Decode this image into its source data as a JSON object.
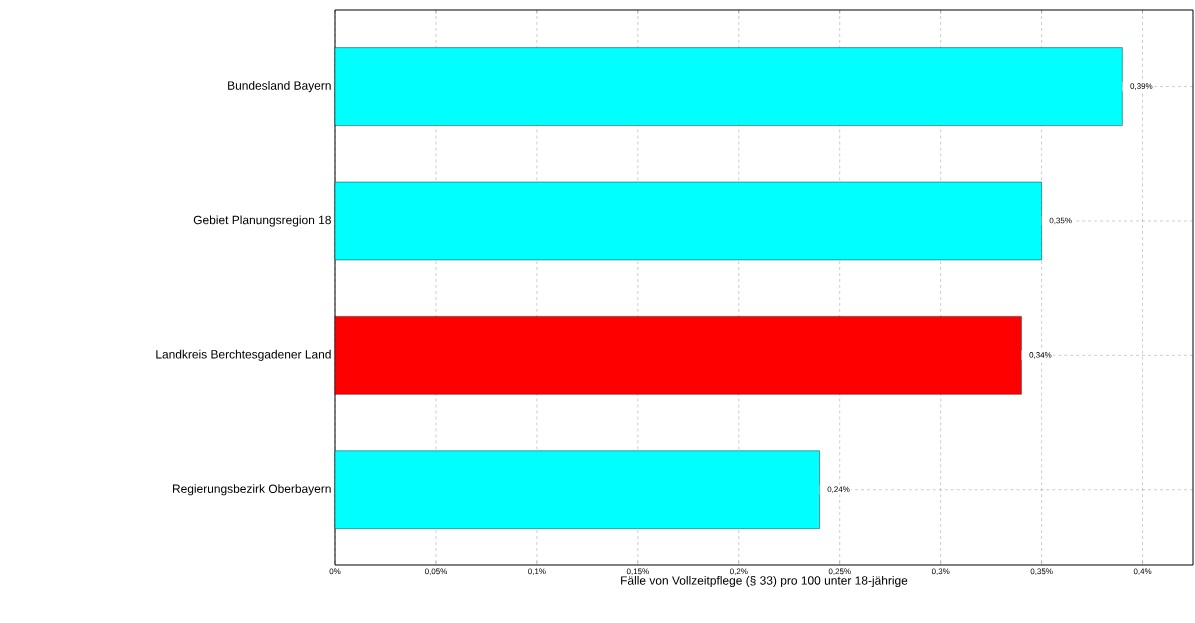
{
  "chart_data": {
    "type": "bar",
    "orientation": "horizontal",
    "categories": [
      "Bundesland Bayern",
      "Gebiet Planungsregion 18",
      "Landkreis Berchtesgadener Land",
      "Regierungsbezirk Oberbayern"
    ],
    "values": [
      0.39,
      0.35,
      0.34,
      0.24
    ],
    "value_labels": [
      "0,39%",
      "0,35%",
      "0,34%",
      "0,24%"
    ],
    "colors": [
      "#00ffff",
      "#00ffff",
      "#ff0000",
      "#00ffff"
    ],
    "xlabel": "Fälle von Vollzeitpflege (§ 33) pro 100 unter 18-jährige",
    "xlim": [
      0,
      0.425
    ],
    "xticks": [
      {
        "value": 0,
        "label": "0%"
      },
      {
        "value": 0.05,
        "label": "0,05%"
      },
      {
        "value": 0.1,
        "label": "0,1%"
      },
      {
        "value": 0.15,
        "label": "0,15%"
      },
      {
        "value": 0.2,
        "label": "0,2%"
      },
      {
        "value": 0.25,
        "label": "0,25%"
      },
      {
        "value": 0.3,
        "label": "0,3%"
      },
      {
        "value": 0.35,
        "label": "0,35%"
      },
      {
        "value": 0.4,
        "label": "0,4%"
      }
    ],
    "grid": true
  }
}
